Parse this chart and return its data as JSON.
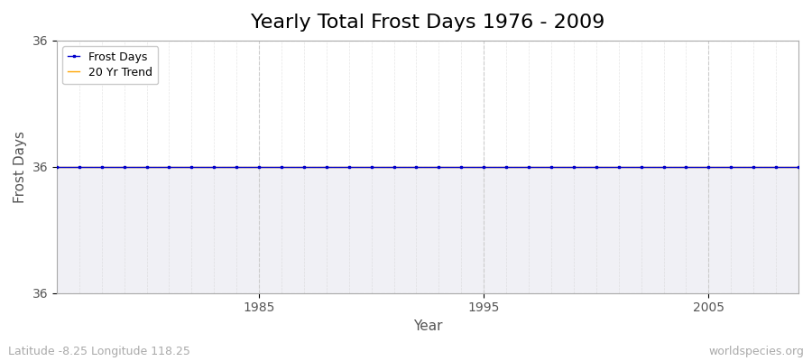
{
  "title": "Yearly Total Frost Days 1976 - 2009",
  "xlabel": "Year",
  "ylabel": "Frost Days",
  "subtitle_left": "Latitude -8.25 Longitude 118.25",
  "subtitle_right": "worldspecies.org",
  "years": [
    1976,
    1977,
    1978,
    1979,
    1980,
    1981,
    1982,
    1983,
    1984,
    1985,
    1986,
    1987,
    1988,
    1989,
    1990,
    1991,
    1992,
    1993,
    1994,
    1995,
    1996,
    1997,
    1998,
    1999,
    2000,
    2001,
    2002,
    2003,
    2004,
    2005,
    2006,
    2007,
    2008,
    2009
  ],
  "frost_days": [
    36,
    36,
    36,
    36,
    36,
    36,
    36,
    36,
    36,
    36,
    36,
    36,
    36,
    36,
    36,
    36,
    36,
    36,
    36,
    36,
    36,
    36,
    36,
    36,
    36,
    36,
    36,
    36,
    36,
    36,
    36,
    36,
    36,
    36
  ],
  "trend_values": [
    36,
    36,
    36,
    36,
    36,
    36,
    36,
    36,
    36,
    36,
    36,
    36,
    36,
    36,
    36,
    36,
    36,
    36,
    36,
    36,
    36,
    36,
    36,
    36,
    36,
    36,
    36,
    36,
    36,
    36,
    36,
    36,
    36,
    36
  ],
  "frost_color": "#0000cc",
  "trend_color": "#ffa500",
  "figure_bg_color": "#ffffff",
  "plot_bg_top": "#ffffff",
  "plot_bg_bottom": "#f0f0f5",
  "grid_color": "#cccccc",
  "ylim_min": 35.94,
  "ylim_max": 36.06,
  "xlim_min": 1976,
  "xlim_max": 2009,
  "xticks": [
    1985,
    1995,
    2005
  ],
  "ytick_positions": [
    35.94,
    36.0,
    36.06
  ],
  "ytick_labels": [
    "36",
    "36",
    "36"
  ],
  "legend_frost": "Frost Days",
  "legend_trend": "20 Yr Trend",
  "title_fontsize": 16,
  "axis_label_fontsize": 11,
  "tick_fontsize": 10,
  "subtitle_fontsize": 9,
  "spine_color": "#aaaaaa"
}
